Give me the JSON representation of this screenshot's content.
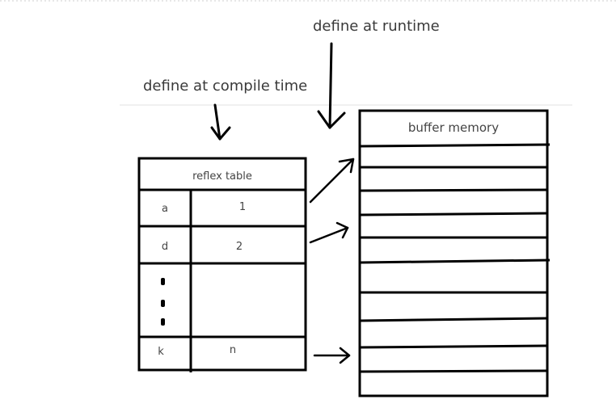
{
  "labels": {
    "runtime": "define at runtime",
    "compile": "define at compile time"
  },
  "reflex_table": {
    "title": "reflex table",
    "rows": [
      {
        "key": "a",
        "value": "1"
      },
      {
        "key": "d",
        "value": "2"
      },
      {
        "key": "k",
        "value": "n"
      }
    ]
  },
  "buffer": {
    "title": "buffer memory"
  }
}
